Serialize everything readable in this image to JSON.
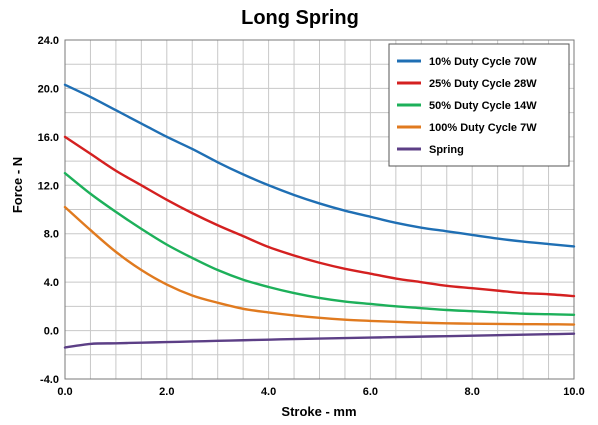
{
  "chart_data": {
    "type": "line",
    "title": "Long Spring",
    "xlabel": "Stroke - mm",
    "ylabel": "Force - N",
    "xlim": [
      0,
      10
    ],
    "ylim": [
      -4,
      24
    ],
    "x_ticks": [
      0,
      2,
      4,
      6,
      8,
      10
    ],
    "x_tick_labels": [
      "0.0",
      "2.0",
      "4.0",
      "6.0",
      "8.0",
      "10.0"
    ],
    "y_ticks": [
      -4,
      0,
      4,
      8,
      12,
      16,
      20,
      24
    ],
    "y_tick_labels": [
      "-4.0",
      "0.0",
      "4.0",
      "8.0",
      "12.0",
      "16.0",
      "20.0",
      "24.0"
    ],
    "x_grid_step": 0.5,
    "y_grid_step": 2,
    "grid": true,
    "legend_position": "top-right",
    "x": [
      0,
      0.5,
      1,
      1.5,
      2,
      2.5,
      3,
      3.5,
      4,
      4.5,
      5,
      5.5,
      6,
      6.5,
      7,
      7.5,
      8,
      8.5,
      9,
      9.5,
      10
    ],
    "series": [
      {
        "name": "10% Duty Cycle 70W",
        "color": "#1f6fb4",
        "values": [
          20.3,
          19.3,
          18.2,
          17.1,
          16.0,
          15.0,
          13.9,
          12.9,
          12.0,
          11.2,
          10.5,
          9.9,
          9.4,
          8.9,
          8.5,
          8.2,
          7.9,
          7.6,
          7.35,
          7.15,
          6.95
        ]
      },
      {
        "name": "25% Duty Cycle 28W",
        "color": "#d42020",
        "values": [
          16.0,
          14.6,
          13.2,
          12.0,
          10.8,
          9.7,
          8.7,
          7.8,
          6.9,
          6.2,
          5.6,
          5.1,
          4.7,
          4.3,
          4.0,
          3.7,
          3.5,
          3.3,
          3.1,
          3.0,
          2.85
        ]
      },
      {
        "name": "50% Duty Cycle 14W",
        "color": "#1db05a",
        "values": [
          13.0,
          11.3,
          9.8,
          8.4,
          7.1,
          6.0,
          5.0,
          4.2,
          3.6,
          3.1,
          2.7,
          2.4,
          2.2,
          2.0,
          1.85,
          1.7,
          1.6,
          1.5,
          1.4,
          1.35,
          1.3
        ]
      },
      {
        "name": "100% Duty Cycle 7W",
        "color": "#e07a1f",
        "values": [
          10.2,
          8.3,
          6.5,
          5.0,
          3.8,
          2.9,
          2.3,
          1.8,
          1.5,
          1.25,
          1.05,
          0.9,
          0.8,
          0.72,
          0.65,
          0.6,
          0.57,
          0.55,
          0.53,
          0.52,
          0.5
        ]
      },
      {
        "name": "Spring",
        "color": "#5c3f86",
        "values": [
          -1.4,
          -1.1,
          -1.05,
          -1.0,
          -0.95,
          -0.9,
          -0.85,
          -0.8,
          -0.75,
          -0.7,
          -0.66,
          -0.62,
          -0.58,
          -0.54,
          -0.5,
          -0.46,
          -0.42,
          -0.38,
          -0.34,
          -0.3,
          -0.26
        ]
      }
    ]
  }
}
